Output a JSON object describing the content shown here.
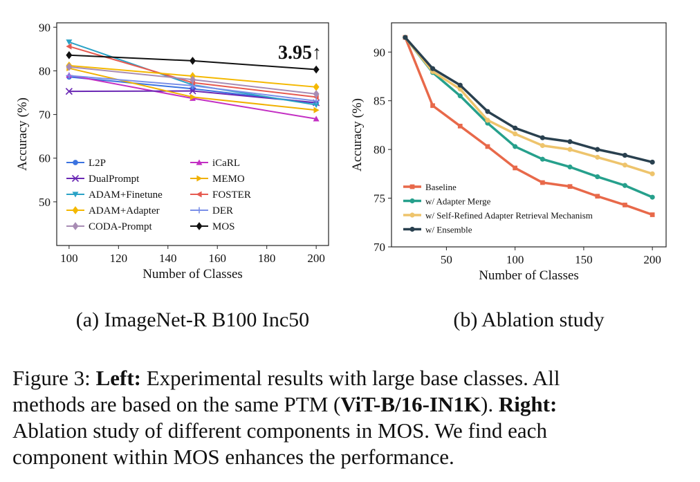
{
  "chart_data": [
    {
      "type": "line",
      "subcaption": "(a) ImageNet-R B100 Inc50",
      "xlabel": "Number of Classes",
      "ylabel": "Accuracy (%)",
      "xlim": [
        95,
        205
      ],
      "ylim": [
        40,
        91
      ],
      "xticks": [
        100,
        120,
        140,
        160,
        180,
        200
      ],
      "yticks": [
        50,
        60,
        70,
        80,
        90
      ],
      "x": [
        100,
        150,
        200
      ],
      "annotation": "3.95↑",
      "legend_position": "lower-left",
      "series": [
        {
          "name": "L2P",
          "color": "#3b73e0",
          "marker": "circle",
          "values": [
            78.6,
            75.9,
            72.6
          ]
        },
        {
          "name": "iCaRL",
          "color": "#c32fc3",
          "marker": "triangle-up",
          "values": [
            79.0,
            73.7,
            69.0
          ]
        },
        {
          "name": "DualPrompt",
          "color": "#6a28b4",
          "marker": "x",
          "values": [
            75.3,
            75.4,
            72.7
          ]
        },
        {
          "name": "MEMO",
          "color": "#f0b000",
          "marker": "triangle-right",
          "values": [
            80.6,
            74.0,
            71.0
          ]
        },
        {
          "name": "ADAM+Finetune",
          "color": "#2aa2c6",
          "marker": "triangle-down",
          "values": [
            86.6,
            76.8,
            72.2
          ]
        },
        {
          "name": "FOSTER",
          "color": "#e65a50",
          "marker": "triangle-left",
          "values": [
            85.6,
            77.3,
            74.0
          ]
        },
        {
          "name": "ADAM+Adapter",
          "color": "#f4b800",
          "marker": "diamond",
          "values": [
            81.2,
            78.8,
            76.3
          ]
        },
        {
          "name": "DER",
          "color": "#7a8fe8",
          "marker": "plus",
          "values": [
            78.9,
            76.6,
            73.1
          ]
        },
        {
          "name": "CODA-Prompt",
          "color": "#a88cb4",
          "marker": "diamond",
          "values": [
            80.9,
            78.0,
            74.7
          ]
        },
        {
          "name": "MOS",
          "color": "#111111",
          "marker": "diamond",
          "values": [
            83.6,
            82.3,
            80.3
          ]
        }
      ]
    },
    {
      "type": "line",
      "subcaption": "(b) Ablation study",
      "xlabel": "Number of Classes",
      "ylabel": "Accuracy (%)",
      "xlim": [
        10,
        210
      ],
      "ylim": [
        70,
        93
      ],
      "xticks": [
        50,
        100,
        150,
        200
      ],
      "yticks": [
        70,
        75,
        80,
        85,
        90
      ],
      "x": [
        20,
        40,
        60,
        80,
        100,
        120,
        140,
        160,
        180,
        200
      ],
      "legend_position": "lower-left",
      "series": [
        {
          "name": "Baseline",
          "color": "#e8694a",
          "marker": "square",
          "values": [
            91.5,
            84.5,
            82.4,
            80.3,
            78.1,
            76.6,
            76.2,
            75.2,
            74.3,
            73.3
          ]
        },
        {
          "name": "w/ Adapter Merge",
          "color": "#26a08c",
          "marker": "circle",
          "values": [
            91.5,
            87.9,
            85.5,
            82.7,
            80.3,
            79.0,
            78.2,
            77.2,
            76.3,
            75.1
          ]
        },
        {
          "name": "w/ Self-Refined Adapter Retrieval Mechanism",
          "color": "#eec46c",
          "marker": "circle",
          "values": [
            91.5,
            88.0,
            86.2,
            83.0,
            81.6,
            80.4,
            80.0,
            79.2,
            78.4,
            77.5
          ]
        },
        {
          "name": "w/ Ensemble",
          "color": "#29404f",
          "marker": "circle",
          "values": [
            91.5,
            88.3,
            86.6,
            83.9,
            82.2,
            81.2,
            80.8,
            80.0,
            79.4,
            78.7
          ]
        }
      ]
    }
  ],
  "caption": {
    "line1_prefix": "Figure 3: ",
    "line1_bold": "Left:",
    "line1_rest": " Experimental results with large base classes. All",
    "line2_prefix": "methods are based on the same PTM (",
    "line2_bold1": "ViT-B/16-IN1K",
    "line2_mid": "). ",
    "line2_bold2": "Right:",
    "line3": "Ablation study of different components in MOS. We find each",
    "line4": "component within MOS enhances the performance."
  }
}
